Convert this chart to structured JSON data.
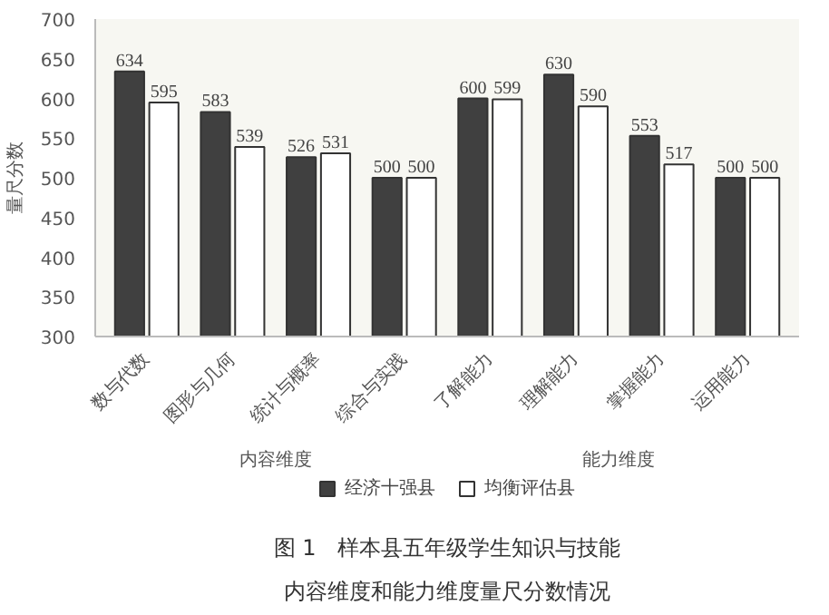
{
  "chart_data": {
    "type": "bar",
    "title": "图 1　样本县五年级学生知识与技能",
    "subtitle": "内容维度和能力维度量尺分数情况",
    "categories": [
      "数与代数",
      "图形与几何",
      "统计与概率",
      "综合与实践",
      "了解能力",
      "理解能力",
      "掌握能力",
      "运用能力"
    ],
    "series": [
      {
        "name": "经济十强县",
        "color": "#404040",
        "values": [
          634,
          583,
          526,
          500,
          600,
          630,
          553,
          500
        ]
      },
      {
        "name": "均衡评估县",
        "color": "#ffffff",
        "values": [
          595,
          539,
          531,
          500,
          599,
          590,
          517,
          500
        ]
      }
    ],
    "ylabel": "量尺分数",
    "ylim": [
      300,
      700
    ],
    "yticks": [
      300,
      350,
      400,
      450,
      500,
      550,
      600,
      650,
      700
    ],
    "annotations": [
      "内容维度",
      "能力维度"
    ],
    "data_labels": true,
    "legend": "bottom",
    "grid": false
  }
}
